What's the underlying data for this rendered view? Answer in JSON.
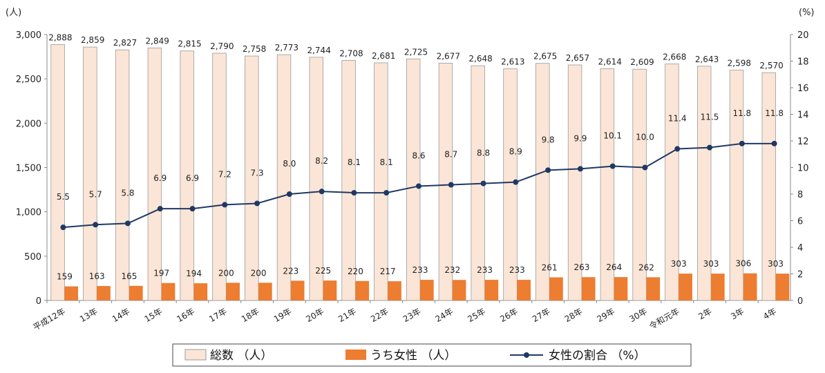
{
  "chart_data": {
    "type": "bar",
    "left_axis_unit": "(人)",
    "right_axis_unit": "(%)",
    "y_left_ticks": [
      "0",
      "500",
      "1,000",
      "1,500",
      "2,000",
      "2,500",
      "3,000"
    ],
    "y_right_ticks": [
      "0",
      "2",
      "4",
      "6",
      "8",
      "10",
      "12",
      "14",
      "16",
      "18",
      "20"
    ],
    "ylim_left": [
      0,
      3000
    ],
    "ylim_right": [
      0,
      20
    ],
    "categories": [
      "平成12年",
      "13年",
      "14年",
      "15年",
      "16年",
      "17年",
      "18年",
      "19年",
      "20年",
      "21年",
      "22年",
      "23年",
      "24年",
      "25年",
      "26年",
      "27年",
      "28年",
      "29年",
      "30年",
      "令和元年",
      "2年",
      "3年",
      "4年"
    ],
    "series": [
      {
        "name": "総数 （人）",
        "type": "bar",
        "axis": "left",
        "color": "#fbe5d6",
        "values": [
          2888,
          2859,
          2827,
          2849,
          2815,
          2790,
          2758,
          2773,
          2744,
          2708,
          2681,
          2725,
          2677,
          2648,
          2613,
          2675,
          2657,
          2614,
          2609,
          2668,
          2643,
          2598,
          2570
        ],
        "labels": [
          "2,888",
          "2,859",
          "2,827",
          "2,849",
          "2,815",
          "2,790",
          "2,758",
          "2,773",
          "2,744",
          "2,708",
          "2,681",
          "2,725",
          "2,677",
          "2,648",
          "2,613",
          "2,675",
          "2,657",
          "2,614",
          "2,609",
          "2,668",
          "2,643",
          "2,598",
          "2,570"
        ]
      },
      {
        "name": "うち女性 （人）",
        "type": "bar",
        "axis": "left",
        "color": "#ed7d31",
        "values": [
          159,
          163,
          165,
          197,
          194,
          200,
          200,
          223,
          225,
          220,
          217,
          233,
          232,
          233,
          233,
          261,
          263,
          264,
          262,
          303,
          303,
          306,
          303
        ],
        "labels": [
          "159",
          "163",
          "165",
          "197",
          "194",
          "200",
          "200",
          "223",
          "225",
          "220",
          "217",
          "233",
          "232",
          "233",
          "233",
          "261",
          "263",
          "264",
          "262",
          "303",
          "303",
          "306",
          "303"
        ]
      },
      {
        "name": "女性の割合 （%）",
        "type": "line",
        "axis": "right",
        "color": "#1f3864",
        "values": [
          5.5,
          5.7,
          5.8,
          6.9,
          6.9,
          7.2,
          7.3,
          8.0,
          8.2,
          8.1,
          8.1,
          8.6,
          8.7,
          8.8,
          8.9,
          9.8,
          9.9,
          10.1,
          10.0,
          11.4,
          11.5,
          11.8,
          11.8
        ],
        "labels": [
          "5.5",
          "5.7",
          "5.8",
          "6.9",
          "6.9",
          "7.2",
          "7.3",
          "8.0",
          "8.2",
          "8.1",
          "8.1",
          "8.6",
          "8.7",
          "8.8",
          "8.9",
          "9.8",
          "9.9",
          "10.1",
          "10.0",
          "11.4",
          "11.5",
          "11.8",
          "11.8"
        ]
      }
    ],
    "legend": "bottom"
  }
}
